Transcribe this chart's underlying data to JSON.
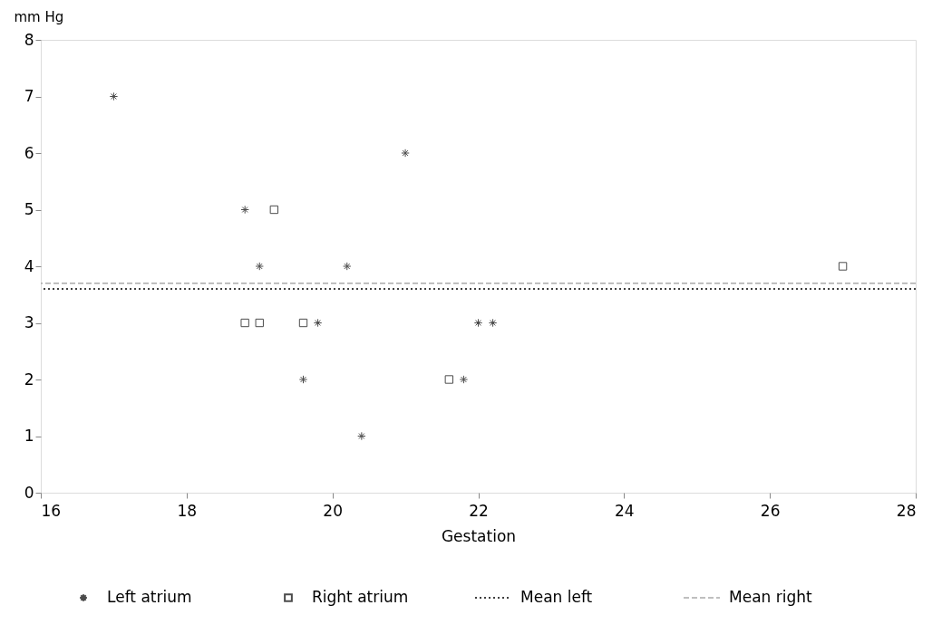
{
  "chart_data": {
    "type": "scatter",
    "xlabel": "Gestation",
    "ylabel": "mm Hg",
    "xlim": [
      16,
      28
    ],
    "ylim": [
      0,
      8
    ],
    "xticks": [
      16,
      18,
      20,
      22,
      24,
      26,
      28
    ],
    "yticks": [
      0,
      1,
      2,
      3,
      4,
      5,
      6,
      7,
      8
    ],
    "grid": false,
    "legend": "bottom",
    "series": [
      {
        "name": "Left atrium",
        "color": "#000000",
        "marker": "cross",
        "x": [
          17,
          18.8,
          19,
          21,
          20.2,
          19.8,
          19.6,
          20.4,
          21.8,
          22,
          22.2
        ],
        "values": [
          7,
          5,
          4,
          6,
          4,
          3,
          2,
          1,
          2,
          3,
          3
        ]
      },
      {
        "name": "Right atrium",
        "color": "#000000",
        "marker": "square",
        "x": [
          19.2,
          18.8,
          19,
          19.6,
          21.6,
          27
        ],
        "values": [
          5,
          3,
          3,
          3,
          2,
          4
        ]
      }
    ],
    "ref_lines": [
      {
        "axis": "y",
        "value": 3.6,
        "label": "Mean left",
        "color": "#000000",
        "line_style": "dotted"
      },
      {
        "axis": "y",
        "value": 3.7,
        "label": "Mean right",
        "color": "#aaaaaa",
        "line_style": "dashed"
      }
    ]
  }
}
